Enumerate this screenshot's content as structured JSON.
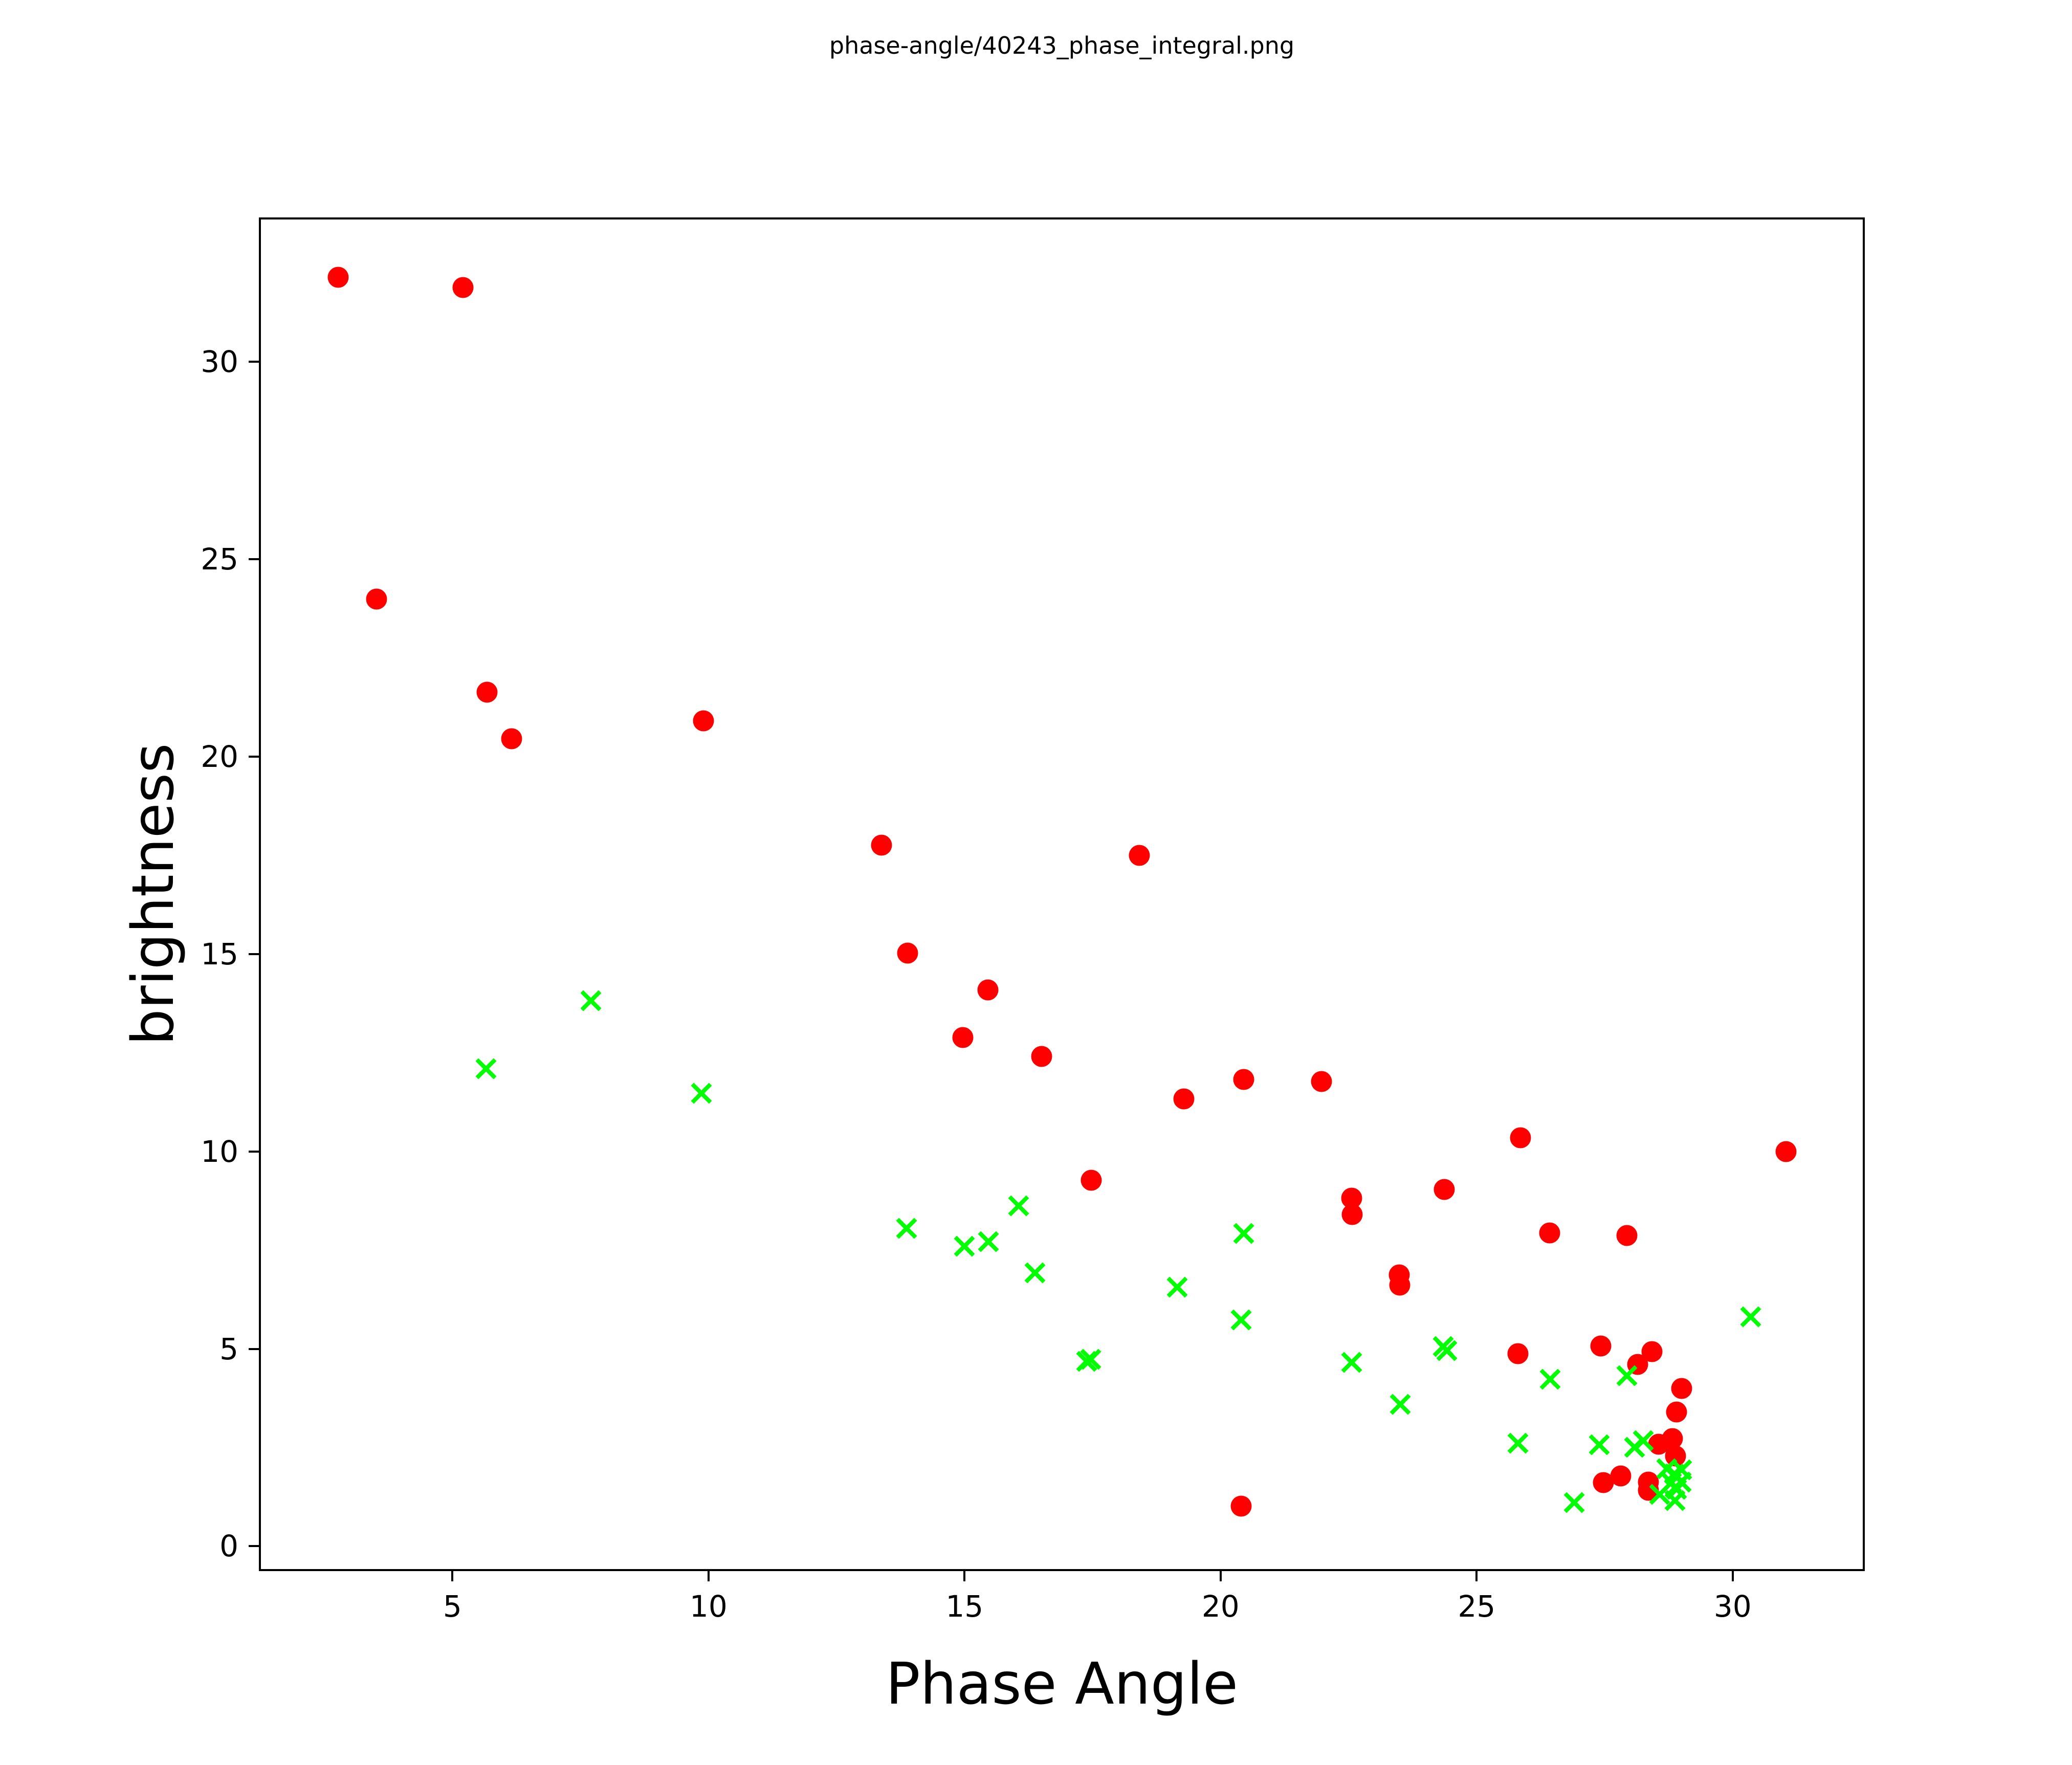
{
  "figure": {
    "title": "phase-angle/40243_phase_integral.png",
    "background": "#ffffff",
    "axes_color": "#000000"
  },
  "chart_data": {
    "type": "scatter",
    "title": "phase-angle/40243_phase_integral.png",
    "xlabel": "Phase Angle",
    "ylabel": "brightness",
    "xlim": [
      1.22,
      32.58
    ],
    "ylim": [
      -0.63,
      33.66
    ],
    "x_ticks": [
      5,
      10,
      15,
      20,
      25,
      30
    ],
    "y_ticks": [
      0,
      5,
      10,
      15,
      20,
      25,
      30
    ],
    "grid": false,
    "legend": null,
    "series": [
      {
        "name": "red-circles",
        "marker": "circle",
        "color": "#ff0000",
        "marker_size": 41,
        "points": [
          [
            2.77,
            32.15
          ],
          [
            5.21,
            31.88
          ],
          [
            3.52,
            23.99
          ],
          [
            5.68,
            21.63
          ],
          [
            6.16,
            20.46
          ],
          [
            9.9,
            20.91
          ],
          [
            13.38,
            17.76
          ],
          [
            18.41,
            17.5
          ],
          [
            13.89,
            15.03
          ],
          [
            15.46,
            14.09
          ],
          [
            14.97,
            12.89
          ],
          [
            16.51,
            12.41
          ],
          [
            19.28,
            11.33
          ],
          [
            20.45,
            11.82
          ],
          [
            21.97,
            11.77
          ],
          [
            17.47,
            9.27
          ],
          [
            25.86,
            10.35
          ],
          [
            24.37,
            9.04
          ],
          [
            22.56,
            8.82
          ],
          [
            22.57,
            8.4
          ],
          [
            26.43,
            7.93
          ],
          [
            27.93,
            7.87
          ],
          [
            23.49,
            6.87
          ],
          [
            23.5,
            6.61
          ],
          [
            25.81,
            4.88
          ],
          [
            27.42,
            5.07
          ],
          [
            28.14,
            4.6
          ],
          [
            28.42,
            4.93
          ],
          [
            29.0,
            4.0
          ],
          [
            28.9,
            3.4
          ],
          [
            28.82,
            2.72
          ],
          [
            28.55,
            2.58
          ],
          [
            28.88,
            2.28
          ],
          [
            27.81,
            1.78
          ],
          [
            27.47,
            1.61
          ],
          [
            28.35,
            1.63
          ],
          [
            28.35,
            1.42
          ],
          [
            20.4,
            1.01
          ],
          [
            31.04,
            10.0
          ]
        ]
      },
      {
        "name": "green-crosses",
        "marker": "x",
        "color": "#00ff00",
        "marker_size": 38,
        "points": [
          [
            7.7,
            13.82
          ],
          [
            5.66,
            12.1
          ],
          [
            9.86,
            11.47
          ],
          [
            16.06,
            8.62
          ],
          [
            13.87,
            8.05
          ],
          [
            15.47,
            7.72
          ],
          [
            15.0,
            7.6
          ],
          [
            20.45,
            7.92
          ],
          [
            16.38,
            6.93
          ],
          [
            19.15,
            6.56
          ],
          [
            20.4,
            5.73
          ],
          [
            17.38,
            4.68
          ],
          [
            17.46,
            4.73
          ],
          [
            22.56,
            4.66
          ],
          [
            24.35,
            5.06
          ],
          [
            24.42,
            4.95
          ],
          [
            23.51,
            3.59
          ],
          [
            26.44,
            4.23
          ],
          [
            27.93,
            4.32
          ],
          [
            25.81,
            2.61
          ],
          [
            27.39,
            2.57
          ],
          [
            26.91,
            1.11
          ],
          [
            30.35,
            5.81
          ],
          [
            28.08,
            2.5
          ],
          [
            28.25,
            2.67
          ],
          [
            28.71,
            1.96
          ],
          [
            29.0,
            1.93
          ],
          [
            28.86,
            1.83
          ],
          [
            28.8,
            1.61
          ],
          [
            28.99,
            1.63
          ],
          [
            28.87,
            1.48
          ],
          [
            28.9,
            1.44
          ],
          [
            28.57,
            1.31
          ],
          [
            28.87,
            1.16
          ]
        ]
      }
    ]
  }
}
